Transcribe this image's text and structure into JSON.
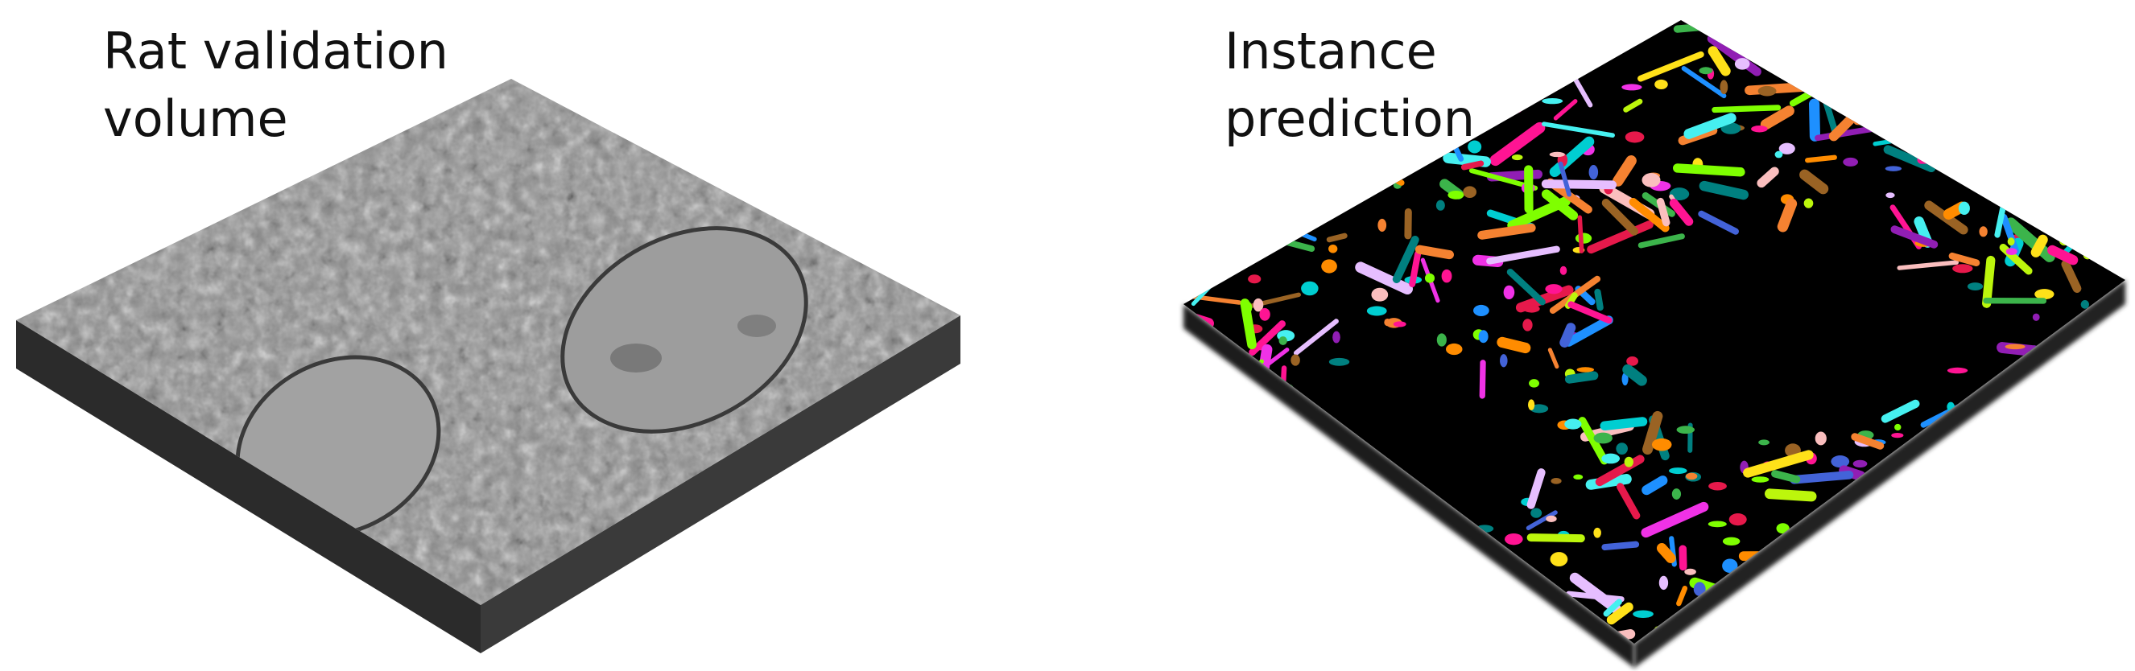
{
  "figure": {
    "left_panel": {
      "title": "Rat validation\nvolume",
      "image": "grayscale electron microscopy volume rendering"
    },
    "right_panel": {
      "title": "Instance\nprediction",
      "image": "multi-colored segmented instance rendering on black volume"
    }
  },
  "colors": {
    "background": "#ffffff",
    "em_top": "#8a8a8a",
    "em_side": "#2a2a2a",
    "prediction_top": "#000000",
    "instance_palette": [
      "#e6194b",
      "#3cb44b",
      "#ffe119",
      "#4363d8",
      "#f58231",
      "#911eb4",
      "#46f0f0",
      "#f032e6",
      "#bcf60c",
      "#fabebe",
      "#008080",
      "#e6beff",
      "#9a6324",
      "#ff8c00",
      "#1e90ff",
      "#7fff00",
      "#ff1493",
      "#00ced1"
    ]
  }
}
